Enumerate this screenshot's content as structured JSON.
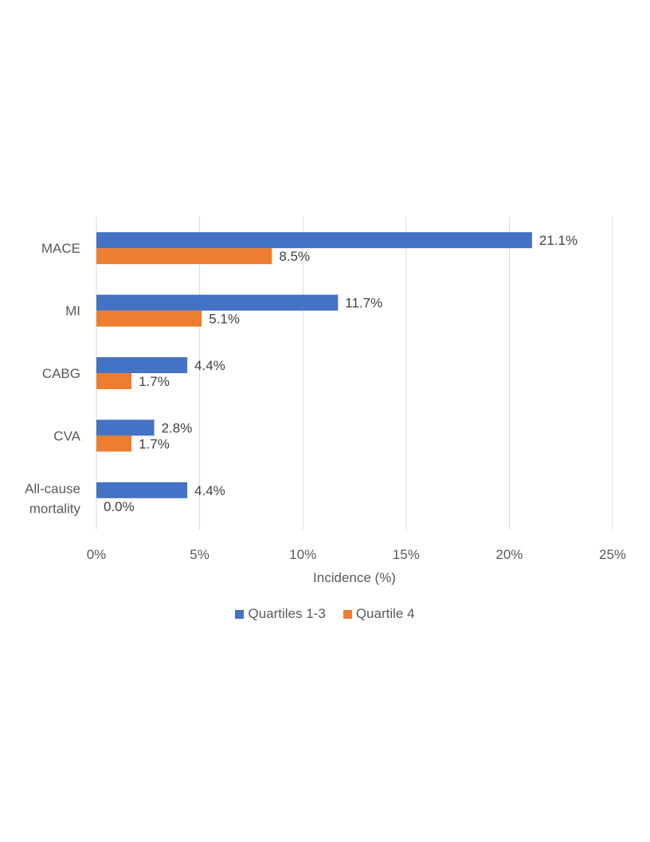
{
  "chart_data": {
    "type": "bar",
    "orientation": "horizontal",
    "categories": [
      "MACE",
      "MI",
      "CABG",
      "CVA",
      "All-cause mortality"
    ],
    "category_label_lines": [
      [
        "MACE"
      ],
      [
        "MI"
      ],
      [
        "CABG"
      ],
      [
        "CVA"
      ],
      [
        "All-cause",
        "mortality"
      ]
    ],
    "series": [
      {
        "name": "Quartiles 1-3",
        "values": [
          21.1,
          11.7,
          4.4,
          2.8,
          4.4
        ],
        "labels": [
          "21.1%",
          "11.7%",
          "4.4%",
          "2.8%",
          "4.4%"
        ],
        "color": "#4472C4"
      },
      {
        "name": "Quartile 4",
        "values": [
          8.5,
          5.1,
          1.7,
          1.7,
          0.0
        ],
        "labels": [
          "8.5%",
          "5.1%",
          "1.7%",
          "1.7%",
          "0.0%"
        ],
        "color": "#ED7D31"
      }
    ],
    "xlabel": "Incidence (%)",
    "ylabel": "",
    "xlim": [
      0,
      25
    ],
    "xticks": [
      0,
      5,
      10,
      15,
      20,
      25
    ],
    "xtick_labels": [
      "0%",
      "5%",
      "10%",
      "15%",
      "20%",
      "25%"
    ],
    "grid": true,
    "legend_position": "bottom",
    "gridline_color": "#D9D9D9"
  }
}
